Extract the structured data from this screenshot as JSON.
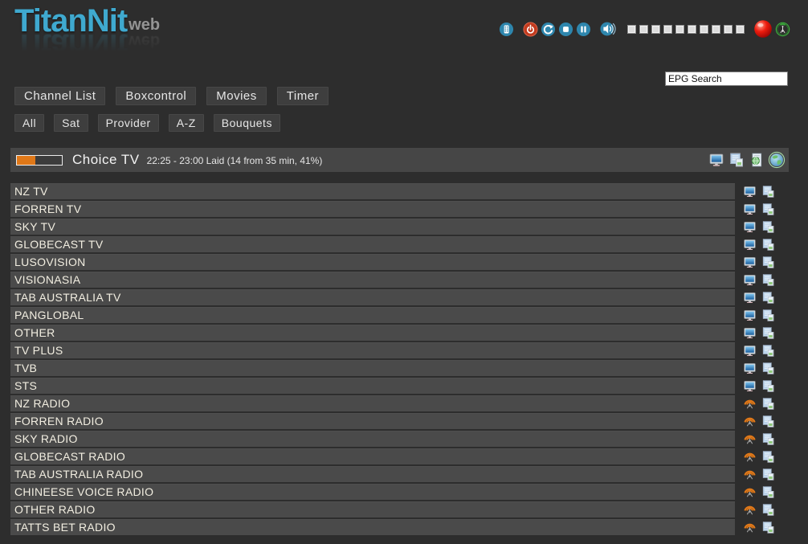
{
  "logo": {
    "title": "TitanNit",
    "suffix": "web"
  },
  "toolbar": {
    "icons": [
      "remote-control-icon",
      "power-icon",
      "restart-icon",
      "stop-icon",
      "pause-icon",
      "volume-icon",
      "record-indicator-icon",
      "signal-antenna-icon"
    ],
    "volume": {
      "segments": 10,
      "filled": 0
    }
  },
  "search": {
    "value": "EPG Search"
  },
  "nav": {
    "items": [
      {
        "label": "Channel List"
      },
      {
        "label": "Boxcontrol"
      },
      {
        "label": "Movies"
      },
      {
        "label": "Timer"
      }
    ]
  },
  "filters": {
    "items": [
      {
        "label": "All"
      },
      {
        "label": "Sat"
      },
      {
        "label": "Provider"
      },
      {
        "label": "A-Z"
      },
      {
        "label": "Bouquets"
      }
    ]
  },
  "now_playing": {
    "channel": "Choice TV",
    "epg_text": "22:25 - 23:00 Laid (14 from 35 min, 41%)",
    "progress_percent": 41,
    "icons": [
      "tv-screen-icon",
      "epg-list-icon",
      "stream-document-icon",
      "web-globe-icon"
    ]
  },
  "channels": {
    "rows": [
      {
        "name": "NZ TV",
        "type": "tv"
      },
      {
        "name": "FORREN TV",
        "type": "tv"
      },
      {
        "name": "SKY TV",
        "type": "tv"
      },
      {
        "name": "GLOBECAST TV",
        "type": "tv"
      },
      {
        "name": "LUSOVISION",
        "type": "tv"
      },
      {
        "name": "VISIONASIA",
        "type": "tv"
      },
      {
        "name": "TAB AUSTRALIA TV",
        "type": "tv"
      },
      {
        "name": "PANGLOBAL",
        "type": "tv"
      },
      {
        "name": "OTHER",
        "type": "tv"
      },
      {
        "name": "TV PLUS",
        "type": "tv"
      },
      {
        "name": "TVB",
        "type": "tv"
      },
      {
        "name": "STS",
        "type": "tv"
      },
      {
        "name": "NZ RADIO",
        "type": "radio"
      },
      {
        "name": "FORREN RADIO",
        "type": "radio"
      },
      {
        "name": "SKY RADIO",
        "type": "radio"
      },
      {
        "name": "GLOBECAST RADIO",
        "type": "radio"
      },
      {
        "name": "TAB AUSTRALIA RADIO",
        "type": "radio"
      },
      {
        "name": "CHINEESE VOICE RADIO",
        "type": "radio"
      },
      {
        "name": "OTHER RADIO",
        "type": "radio"
      },
      {
        "name": "TATTS BET RADIO",
        "type": "radio"
      }
    ]
  },
  "colors": {
    "accent_blue": "#2e86ad",
    "orange": "#e07818",
    "record_red": "#e01212",
    "green": "#3cb43c",
    "logo_blue": "#3fa9cf"
  }
}
